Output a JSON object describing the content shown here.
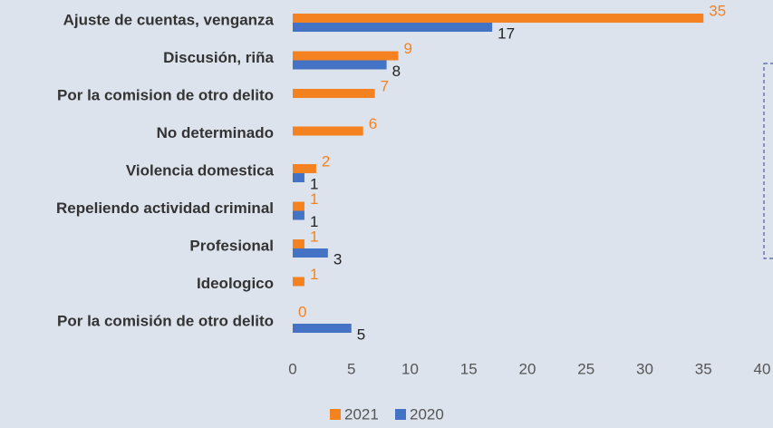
{
  "chart_data": {
    "type": "bar",
    "orientation": "horizontal",
    "categories": [
      "Ajuste de cuentas, venganza",
      "Discusión, riña",
      "Por la comision de otro delito",
      "No determinado",
      "Violencia domestica",
      "Repeliendo actividad criminal",
      "Profesional",
      "Ideologico",
      "Por la comisión de otro delito"
    ],
    "series": [
      {
        "name": "2021",
        "color": "#f58220",
        "values": [
          35,
          9,
          7,
          6,
          2,
          1,
          1,
          1,
          0
        ]
      },
      {
        "name": "2020",
        "color": "#4472c4",
        "values": [
          17,
          8,
          null,
          null,
          1,
          1,
          3,
          null,
          5
        ]
      }
    ],
    "xlim": [
      0,
      40
    ],
    "xticks": [
      0,
      5,
      10,
      15,
      20,
      25,
      30,
      35,
      40
    ],
    "grid": false,
    "legend": "bottom"
  }
}
